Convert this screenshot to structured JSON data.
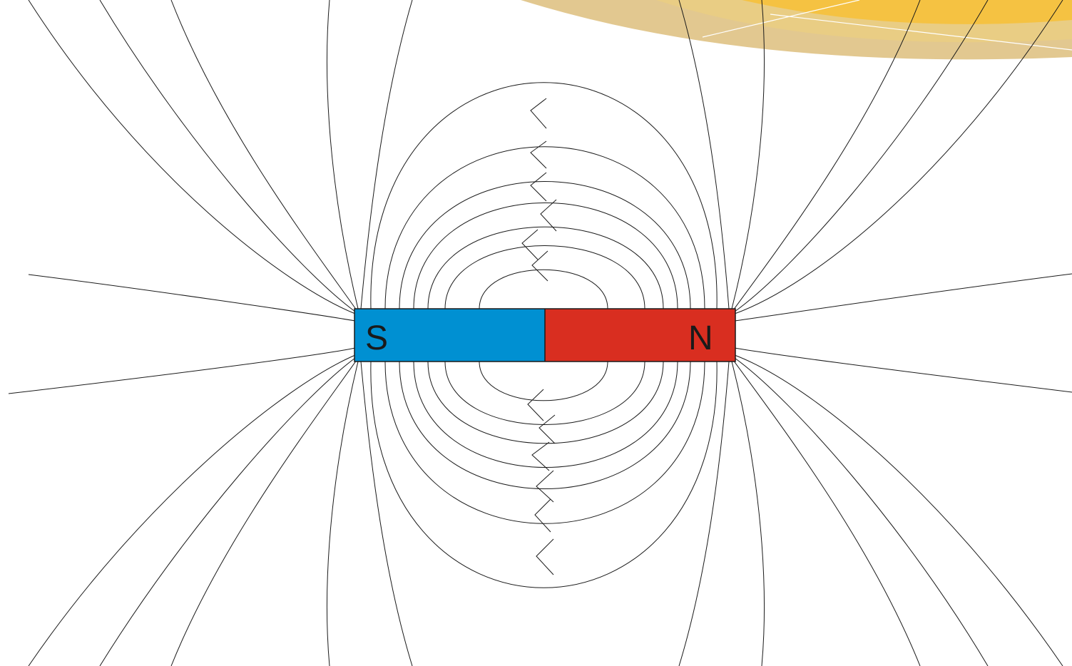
{
  "magnet": {
    "south_label": "S",
    "north_label": "N",
    "south_color": "#0090d2",
    "north_color": "#d92e20",
    "outline_color": "#1a1a1a"
  },
  "field_lines": {
    "stroke_color": "#1a1a1a",
    "direction": "north-to-south",
    "closed_loops_per_side": 7,
    "arrows_per_side": 7
  },
  "decoration": {
    "corner_band_colors": [
      "#f5c242",
      "#e9cd84",
      "#e2c890"
    ]
  }
}
